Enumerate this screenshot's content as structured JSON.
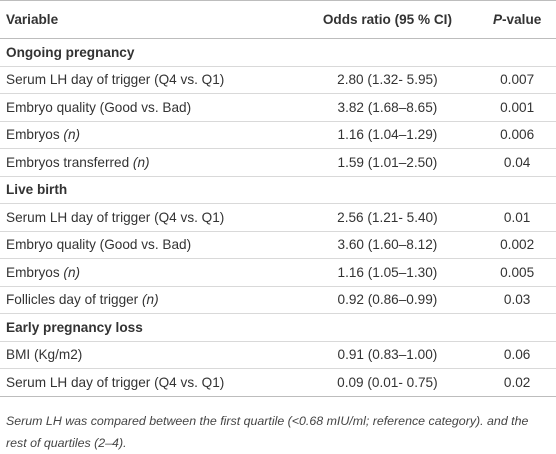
{
  "table": {
    "header": [
      "Variable",
      "Odds ratio (95 % CI)",
      "P-value"
    ],
    "sections": [
      {
        "title": "Ongoing pregnancy",
        "rows": [
          [
            "Serum LH day of trigger (Q4 vs. Q1)",
            "2.80 (1.32- 5.95)",
            "0.007"
          ],
          [
            "Embryo quality (Good vs. Bad)",
            "3.82 (1.68–8.65)",
            "0.001"
          ],
          [
            "Embryos (n)",
            "1.16 (1.04–1.29)",
            "0.006"
          ],
          [
            "Embryos transferred (n)",
            "1.59 (1.01–2.50)",
            "0.04"
          ]
        ]
      },
      {
        "title": "Live birth",
        "rows": [
          [
            "Serum LH day of trigger (Q4 vs. Q1)",
            "2.56 (1.21- 5.40)",
            "0.01"
          ],
          [
            "Embryo quality (Good vs. Bad)",
            "3.60 (1.60–8.12)",
            "0.002"
          ],
          [
            "Embryos (n)",
            "1.16 (1.05–1.30)",
            "0.005"
          ],
          [
            "Follicles day of trigger (n)",
            "0.92 (0.86–0.99)",
            "0.03"
          ]
        ]
      },
      {
        "title": "Early pregnancy loss",
        "rows": [
          [
            "BMI (Kg/m2)",
            "0.91 (0.83–1.00)",
            "0.06"
          ],
          [
            "Serum LH day of trigger (Q4 vs. Q1)",
            "0.09 (0.01- 0.75)",
            "0.02"
          ]
        ]
      }
    ]
  },
  "footnote": "Serum LH was compared between the first quartile (<0.68 mIU/ml; reference category). and the rest of quartiles (2–4)."
}
